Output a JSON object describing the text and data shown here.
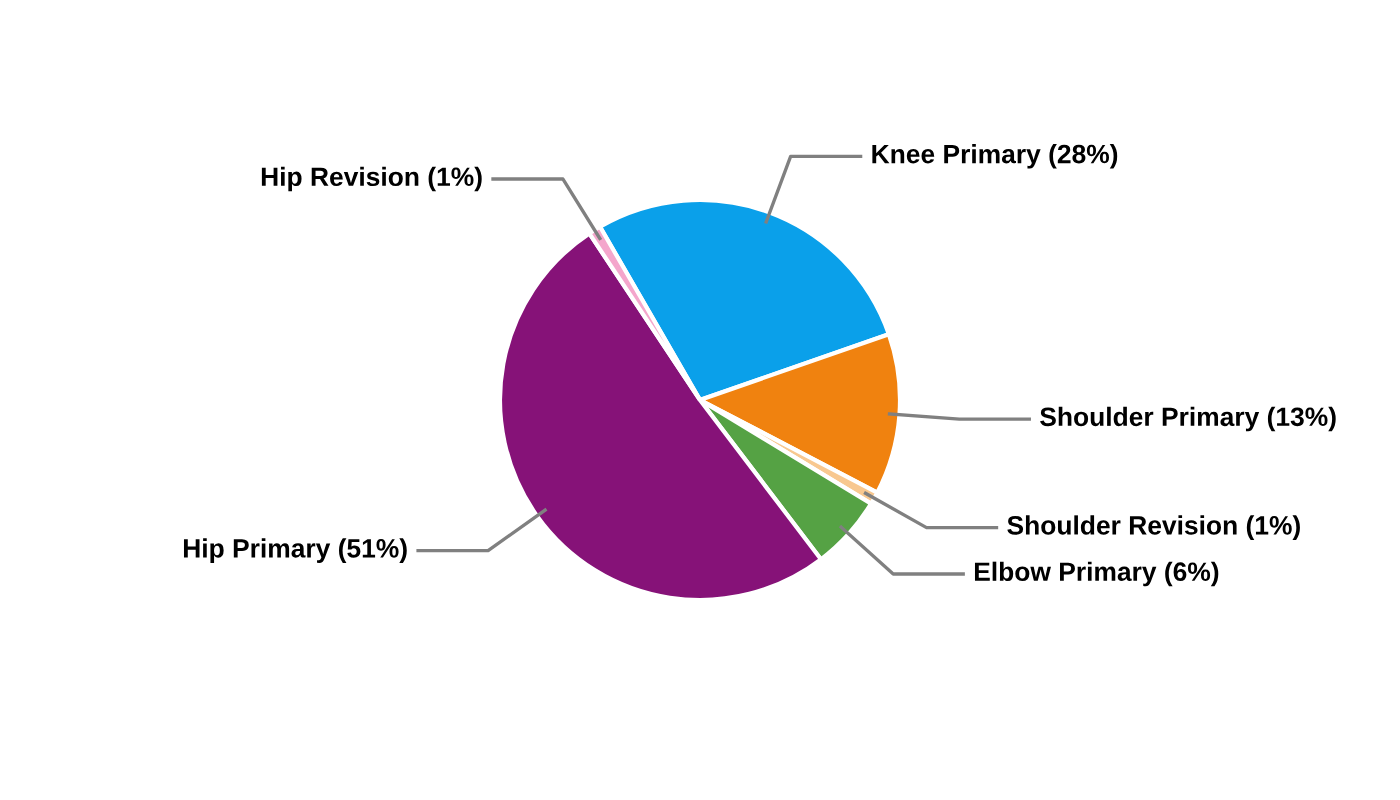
{
  "chart_data": {
    "type": "pie",
    "categories": [
      "Knee Primary (28%)",
      "Shoulder Primary (13%)",
      "Shoulder Revision (1%)",
      "Elbow Primary (6%)",
      "Hip Primary (51%)",
      "Hip Revision (1%)"
    ],
    "values": [
      28,
      13,
      1,
      6,
      51,
      1
    ],
    "colors": [
      "#0aa0ea",
      "#f0820f",
      "#f8c890",
      "#55a244",
      "#861278",
      "#f4a6cc"
    ],
    "legend": false
  }
}
